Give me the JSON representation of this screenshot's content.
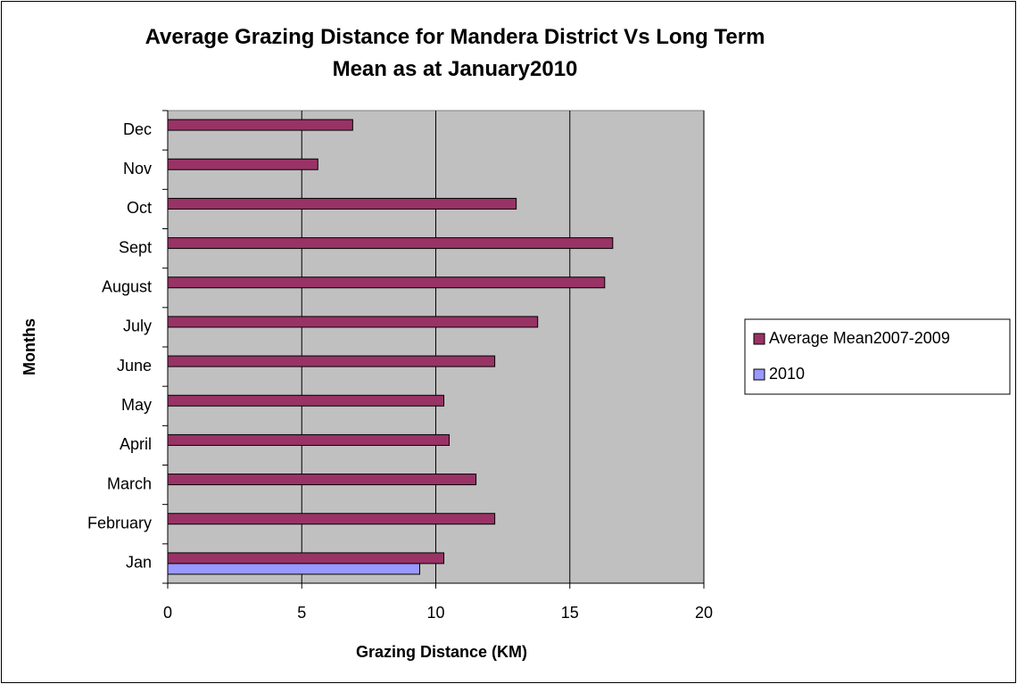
{
  "chart_data": {
    "type": "barh",
    "title": "Average Grazing Distance for Mandera District Vs Long Term Mean as at January2010",
    "x_label": "Grazing Distance (KM)",
    "y_label": "Months",
    "categories": [
      "Jan",
      "February",
      "March",
      "April",
      "May",
      "June",
      "July",
      "August",
      "Sept",
      "Oct",
      "Nov",
      "Dec"
    ],
    "series": [
      {
        "name": "Average Mean2007-2009",
        "color": "#993366",
        "values": [
          10.3,
          12.2,
          11.5,
          10.5,
          10.3,
          12.2,
          13.8,
          16.3,
          16.6,
          13.0,
          5.6,
          6.9
        ]
      },
      {
        "name": "2010",
        "color": "#9999ff",
        "values": [
          9.4,
          null,
          null,
          null,
          null,
          null,
          null,
          null,
          null,
          null,
          null,
          null
        ]
      }
    ],
    "xlim": [
      0,
      20
    ],
    "xticks": [
      0,
      5,
      10,
      15,
      20
    ],
    "grid": true,
    "legend": "right"
  }
}
